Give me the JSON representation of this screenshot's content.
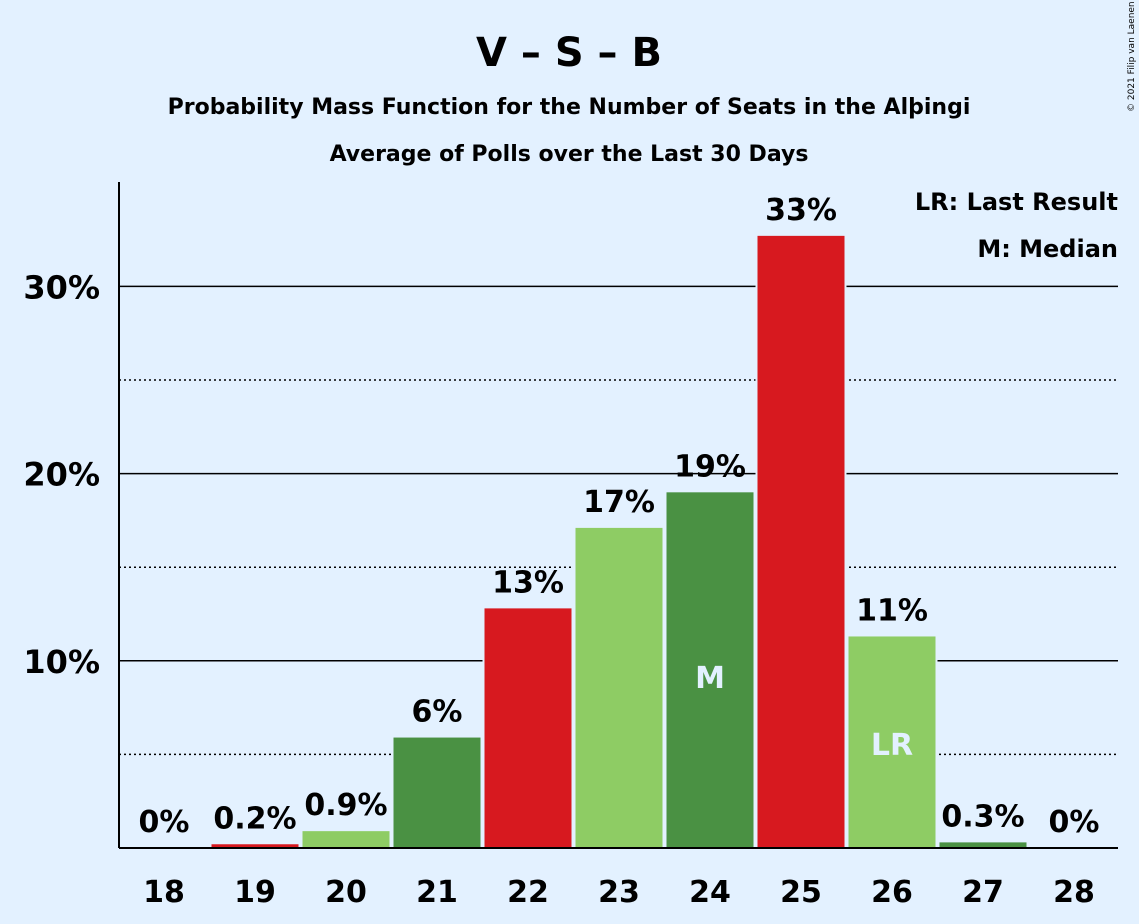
{
  "chart_data": {
    "type": "bar",
    "title": "V – S – B",
    "subtitle": "Probability Mass Function for the Number of Seats in the Alþingi",
    "subtitle2": "Average of Polls over the Last 30 Days",
    "copyright": "© 2021 Filip van Laenen",
    "ylim": [
      0,
      35.5
    ],
    "major_ticks": [
      10,
      20,
      30
    ],
    "minor_ticks": [
      5,
      15,
      25
    ],
    "ytick_labels": [
      "10%",
      "20%",
      "30%"
    ],
    "categories": [
      "18",
      "19",
      "20",
      "21",
      "22",
      "23",
      "24",
      "25",
      "26",
      "27",
      "28"
    ],
    "values": [
      0,
      0.2,
      0.9,
      5.9,
      12.8,
      17.1,
      19,
      32.7,
      11.3,
      0.3,
      0
    ],
    "data_labels": [
      "0%",
      "0.2%",
      "0.9%",
      "6%",
      "13%",
      "17%",
      "19%",
      "33%",
      "11%",
      "0.3%",
      "0%"
    ],
    "bar_colors": [
      "#8ecc64",
      "#d7191f",
      "#8ecc64",
      "#4a9143",
      "#d7191f",
      "#8ecc64",
      "#4a9143",
      "#d7191f",
      "#8ecc64",
      "#4a9143",
      "#8ecc64"
    ],
    "markers": [
      {
        "category": "24",
        "label": "M"
      },
      {
        "category": "26",
        "label": "LR"
      }
    ],
    "legend": [
      "LR: Last Result",
      "M: Median"
    ]
  }
}
